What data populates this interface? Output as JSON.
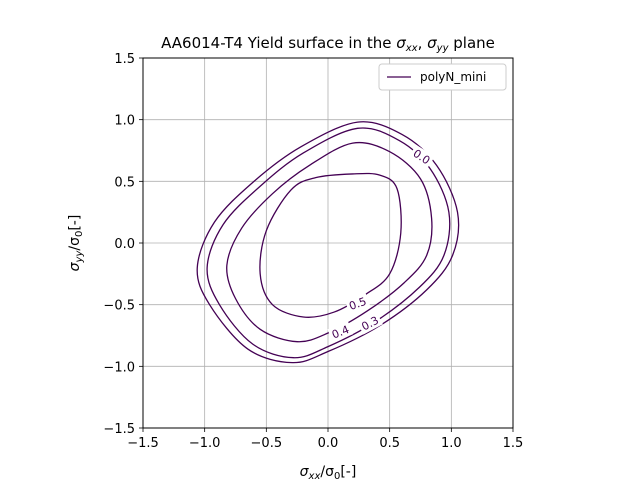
{
  "chart_data": {
    "type": "line",
    "title": "AA6014-T4 Yield surface in the σxx, σyy plane",
    "title_parts": {
      "prefix": "AA6014-T4 Yield surface in the ",
      "s1": "σ",
      "s1_sub": "xx",
      "sep": ", ",
      "s2": "σ",
      "s2_sub": "yy",
      "suffix": " plane"
    },
    "xlabel": "σxx/σ0[-]",
    "ylabel": "σyy/σ0[-]",
    "xlabel_parts": {
      "sym": "σ",
      "sub1": "xx",
      "mid": "/σ",
      "sub2": "0",
      "tail": "[-]"
    },
    "ylabel_parts": {
      "sym": "σ",
      "sub1": "yy",
      "mid": "/σ",
      "sub2": "0",
      "tail": "[-]"
    },
    "xlim": [
      -1.5,
      1.5
    ],
    "ylim": [
      -1.5,
      1.5
    ],
    "xticks": [
      "−1.5",
      "−1.0",
      "−0.5",
      "0.0",
      "0.5",
      "1.0",
      "1.5"
    ],
    "yticks": [
      "1.5",
      "1.0",
      "0.5",
      "0.0",
      "−0.5",
      "−1.0",
      "−1.5"
    ],
    "grid": true,
    "legend_position": "top-right",
    "legend": [
      "polyN_mini"
    ],
    "series_color": "#440154",
    "series": [
      {
        "name": "polyN_mini",
        "contours": [
          {
            "level": "0.0",
            "points": [
              [
                0.24,
                0.98
              ],
              [
                0.6,
                0.88
              ],
              [
                0.88,
                0.63
              ],
              [
                1.05,
                0.25
              ],
              [
                1.01,
                -0.1
              ],
              [
                0.8,
                -0.38
              ],
              [
                0.42,
                -0.67
              ],
              [
                0.0,
                -0.88
              ],
              [
                -0.29,
                -0.97
              ],
              [
                -0.65,
                -0.86
              ],
              [
                -0.96,
                -0.5
              ],
              [
                -1.06,
                -0.2
              ],
              [
                -0.92,
                0.17
              ],
              [
                -0.6,
                0.5
              ],
              [
                -0.22,
                0.78
              ]
            ]
          },
          {
            "level": "0.3",
            "points": [
              [
                0.24,
                0.93
              ],
              [
                0.58,
                0.83
              ],
              [
                0.83,
                0.6
              ],
              [
                0.98,
                0.25
              ],
              [
                0.94,
                -0.1
              ],
              [
                0.74,
                -0.36
              ],
              [
                0.38,
                -0.64
              ],
              [
                0.0,
                -0.84
              ],
              [
                -0.28,
                -0.93
              ],
              [
                -0.61,
                -0.82
              ],
              [
                -0.88,
                -0.5
              ],
              [
                -0.98,
                -0.2
              ],
              [
                -0.85,
                0.15
              ],
              [
                -0.55,
                0.46
              ],
              [
                -0.2,
                0.73
              ]
            ]
          },
          {
            "level": "0.4",
            "points": [
              [
                0.2,
                0.81
              ],
              [
                0.5,
                0.74
              ],
              [
                0.75,
                0.52
              ],
              [
                0.84,
                0.2
              ],
              [
                0.8,
                -0.1
              ],
              [
                0.62,
                -0.32
              ],
              [
                0.32,
                -0.55
              ],
              [
                0.0,
                -0.73
              ],
              [
                -0.25,
                -0.8
              ],
              [
                -0.55,
                -0.7
              ],
              [
                -0.75,
                -0.45
              ],
              [
                -0.82,
                -0.18
              ],
              [
                -0.7,
                0.12
              ],
              [
                -0.45,
                0.4
              ],
              [
                -0.15,
                0.63
              ]
            ]
          },
          {
            "level": "0.5",
            "points": [
              [
                0.2,
                0.56
              ],
              [
                0.42,
                0.55
              ],
              [
                0.56,
                0.44
              ],
              [
                0.59,
                0.08
              ],
              [
                0.5,
                -0.25
              ],
              [
                0.3,
                -0.42
              ],
              [
                0.05,
                -0.56
              ],
              [
                -0.2,
                -0.6
              ],
              [
                -0.45,
                -0.5
              ],
              [
                -0.55,
                -0.25
              ],
              [
                -0.5,
                0.1
              ],
              [
                -0.3,
                0.43
              ],
              [
                -0.1,
                0.53
              ]
            ]
          }
        ]
      }
    ],
    "contour_labels": [
      {
        "text": "0.0",
        "x": 0.76,
        "y": 0.7,
        "angle": 33
      },
      {
        "text": "0.3",
        "x": 0.34,
        "y": -0.65,
        "angle": -28
      },
      {
        "text": "0.4",
        "x": 0.1,
        "y": -0.72,
        "angle": -22
      },
      {
        "text": "0.5",
        "x": 0.24,
        "y": -0.49,
        "angle": -20
      }
    ]
  }
}
